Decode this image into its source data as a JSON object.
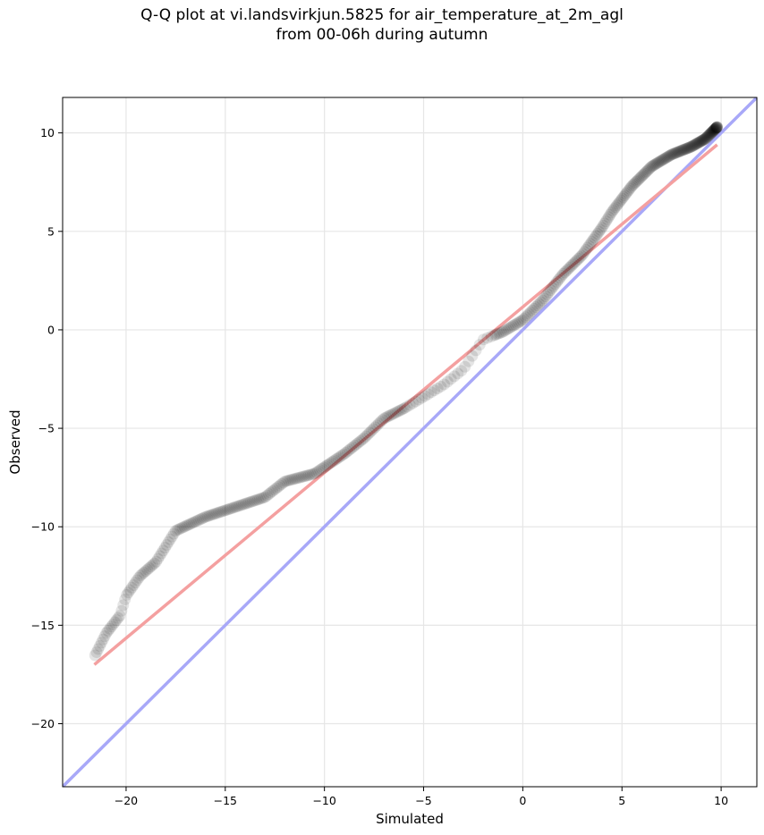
{
  "chart_data": {
    "type": "scatter",
    "title": "Q-Q plot at vi.landsvirkjun.5825 for air_temperature_at_2m_agl",
    "subtitle": "from 00-06h during autumn",
    "xlabel": "Simulated",
    "ylabel": "Observed",
    "xlim": [
      -23.2,
      11.8
    ],
    "ylim": [
      -23.2,
      11.8
    ],
    "xticks": [
      -20,
      -15,
      -10,
      -5,
      0,
      5,
      10
    ],
    "yticks": [
      -20,
      -15,
      -10,
      -5,
      0,
      5,
      10
    ],
    "xtick_labels": [
      "−20",
      "−15",
      "−10",
      "−5",
      "0",
      "5",
      "10"
    ],
    "ytick_labels": [
      "−20",
      "−15",
      "−10",
      "−5",
      "0",
      "5",
      "10"
    ],
    "grid": true,
    "colors": {
      "points": "#000000",
      "fit_line": "#f4a0a0",
      "identity_line": "#a8a8f8"
    },
    "reference_lines": [
      {
        "kind": "identity",
        "x": [
          -23.2,
          11.8
        ],
        "y": [
          -23.2,
          11.8
        ]
      },
      {
        "kind": "fit",
        "x": [
          -21.6,
          9.8
        ],
        "y": [
          -17.0,
          9.4
        ]
      }
    ],
    "quantile_anchors": {
      "simulated": [
        -21.6,
        -21.0,
        -20.3,
        -20.0,
        -19.3,
        -18.5,
        -17.5,
        -16.0,
        -14.5,
        -13.0,
        -12.0,
        -10.5,
        -9.0,
        -8.0,
        -7.0,
        -6.0,
        -5.0,
        -4.0,
        -3.0,
        -2.0,
        -1.0,
        0.0,
        1.0,
        2.0,
        3.0,
        4.0,
        4.5,
        5.5,
        6.5,
        7.5,
        8.5,
        9.2,
        9.8
      ],
      "observed": [
        -16.6,
        -15.4,
        -14.5,
        -13.5,
        -12.5,
        -11.8,
        -10.2,
        -9.5,
        -9.0,
        -8.5,
        -7.7,
        -7.3,
        -6.3,
        -5.5,
        -4.5,
        -4.0,
        -3.4,
        -2.8,
        -2.0,
        -0.5,
        -0.1,
        0.5,
        1.5,
        2.8,
        3.8,
        5.2,
        6.0,
        7.3,
        8.3,
        8.9,
        9.3,
        9.7,
        10.3
      ]
    },
    "n_points": 400
  }
}
